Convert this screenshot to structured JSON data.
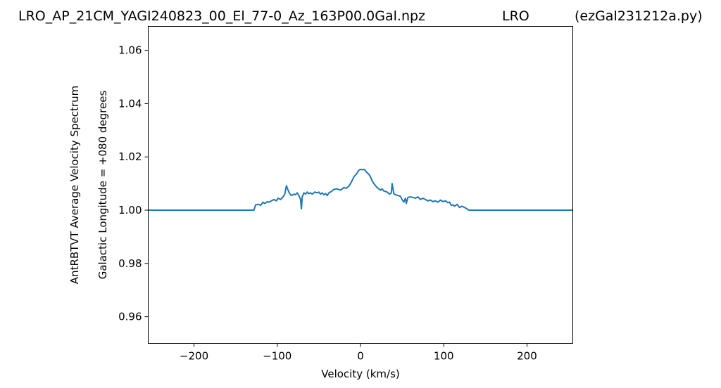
{
  "header": {
    "filename": "LRO_AP_21CM_YAGI240823_00_El_77-0_Az_163P00.0Gal.npz",
    "station": "LRO",
    "script": "(ezGal231212a.py)"
  },
  "chart_data": {
    "type": "line",
    "xlabel": "Velocity (km/s)",
    "ylabel_outer": "AntRBTVT Average Velocity Spectrum",
    "ylabel_inner": "Galactic Longitude = +080 degrees",
    "xlim": [
      -255,
      255
    ],
    "ylim": [
      0.95,
      1.069
    ],
    "xticks": [
      -200,
      -100,
      0,
      100,
      200
    ],
    "xtick_labels": [
      "−200",
      "−100",
      "0",
      "100",
      "200"
    ],
    "yticks": [
      0.96,
      0.98,
      1.0,
      1.02,
      1.04,
      1.06
    ],
    "ytick_labels": [
      "0.96",
      "0.98",
      "1.00",
      "1.02",
      "1.04",
      "1.06"
    ],
    "grid": false,
    "color": "#1f77b4",
    "series": [
      {
        "x": [
          -255,
          -128,
          -126,
          -122,
          -120,
          -117,
          -115,
          -112,
          -110,
          -107,
          -104,
          -101,
          -99,
          -96,
          -93,
          -91,
          -89,
          -87,
          -85,
          -83,
          -80,
          -78,
          -76,
          -74,
          -72,
          -71,
          -70,
          -68,
          -66,
          -64,
          -62,
          -60,
          -58,
          -55,
          -52,
          -50,
          -48,
          -46,
          -44,
          -42,
          -40,
          -38,
          -35,
          -32,
          -28,
          -24,
          -20,
          -17,
          -14,
          -11,
          -8,
          -5,
          -2,
          0,
          2,
          4,
          6,
          8,
          10,
          12,
          14,
          16,
          18,
          20,
          22,
          24,
          26,
          28,
          30,
          32,
          35,
          37,
          38,
          40,
          42,
          45,
          48,
          50,
          52,
          54,
          55,
          57,
          60,
          63,
          66,
          69,
          72,
          75,
          78,
          81,
          84,
          87,
          90,
          93,
          96,
          99,
          102,
          105,
          107,
          109,
          111,
          113,
          116,
          119,
          122,
          125,
          128,
          130,
          132,
          255
        ],
        "y": [
          1.0,
          1.0,
          1.002,
          1.0022,
          1.0018,
          1.003,
          1.0025,
          1.0032,
          1.003,
          1.0035,
          1.004,
          1.0035,
          1.0045,
          1.004,
          1.005,
          1.006,
          1.0092,
          1.0075,
          1.0062,
          1.0055,
          1.006,
          1.0058,
          1.0065,
          1.0055,
          1.004,
          1.0005,
          1.005,
          1.0065,
          1.006,
          1.0068,
          1.0062,
          1.0065,
          1.006,
          1.0068,
          1.0065,
          1.0068,
          1.006,
          1.0065,
          1.0058,
          1.0062,
          1.0055,
          1.0065,
          1.007,
          1.0078,
          1.008,
          1.0075,
          1.0085,
          1.0082,
          1.009,
          1.0105,
          1.0125,
          1.0135,
          1.015,
          1.0153,
          1.0152,
          1.0153,
          1.0148,
          1.014,
          1.0135,
          1.0125,
          1.011,
          1.01,
          1.0092,
          1.0085,
          1.008,
          1.0075,
          1.008,
          1.0072,
          1.007,
          1.0068,
          1.006,
          1.0065,
          1.01,
          1.0062,
          1.0058,
          1.0055,
          1.0052,
          1.004,
          1.003,
          1.0045,
          1.0025,
          1.0048,
          1.005,
          1.0048,
          1.0045,
          1.005,
          1.004,
          1.0045,
          1.004,
          1.0035,
          1.0038,
          1.0032,
          1.0035,
          1.003,
          1.0038,
          1.0032,
          1.0035,
          1.0028,
          1.003,
          1.0018,
          1.002,
          1.0015,
          1.0022,
          1.001,
          1.0015,
          1.001,
          1.0005,
          1.0,
          1.0,
          1.0
        ]
      }
    ]
  }
}
